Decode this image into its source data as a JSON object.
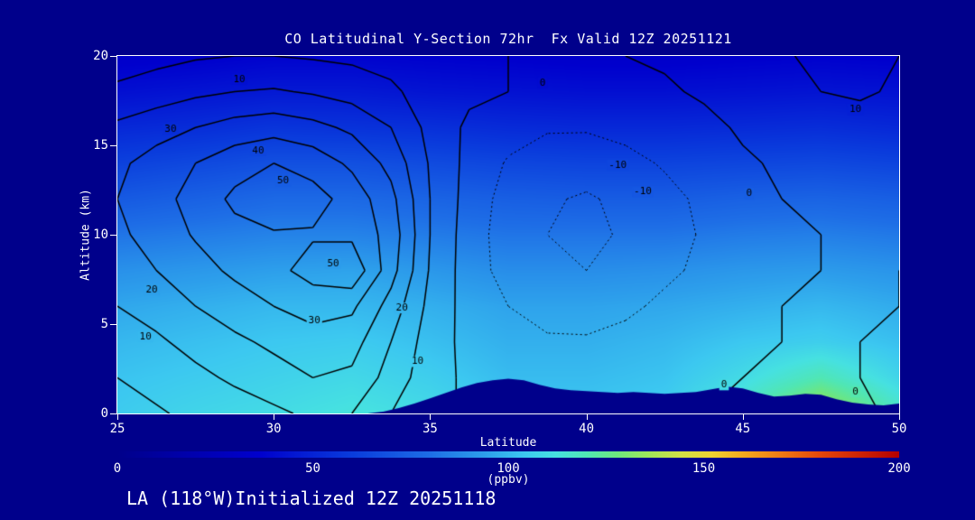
{
  "chart": {
    "title": "CO Latitudinal Y-Section 72hr  Fx Valid 12Z 20251121",
    "xlabel": "Latitude",
    "ylabel": "Altitude (km)",
    "colorbar_label": "(ppbv)",
    "annotation": "LA (118°W)Initialized 12Z 20251118"
  },
  "chart_data": {
    "type": "heatmap",
    "subtype": "latitude-height filled contour cross-section with line contours",
    "title": "CO Latitudinal Y-Section 72hr  Fx Valid 12Z 20251121",
    "xlabel": "Latitude",
    "ylabel": "Altitude (km)",
    "xlim": [
      25,
      50
    ],
    "ylim": [
      0,
      20
    ],
    "x_ticks": [
      25,
      30,
      35,
      40,
      45,
      50
    ],
    "y_ticks": [
      0,
      5,
      10,
      15,
      20
    ],
    "colors": {
      "background": "#00008B",
      "foreground": "#FFFFFF",
      "contour_line": "#000000",
      "terrain": "#00008B"
    },
    "colorbar": {
      "label": "(ppbv)",
      "range": [
        0,
        200
      ],
      "ticks": [
        0,
        50,
        100,
        150,
        200
      ],
      "stops": [
        [
          0.0,
          "#00008B"
        ],
        [
          0.18,
          "#0000CD"
        ],
        [
          0.3,
          "#0A3CDC"
        ],
        [
          0.4,
          "#1E6EE6"
        ],
        [
          0.47,
          "#2D9FEB"
        ],
        [
          0.52,
          "#3CC8F0"
        ],
        [
          0.56,
          "#46E1E1"
        ],
        [
          0.6,
          "#50E6B4"
        ],
        [
          0.64,
          "#6EE67D"
        ],
        [
          0.68,
          "#A0E65A"
        ],
        [
          0.72,
          "#D2E146"
        ],
        [
          0.76,
          "#F0D232"
        ],
        [
          0.8,
          "#F5AA1E"
        ],
        [
          0.85,
          "#F07814"
        ],
        [
          0.9,
          "#E6460A"
        ],
        [
          1.0,
          "#B40000"
        ]
      ]
    },
    "fill_grid": {
      "units": "ppbv",
      "x": [
        25,
        27.5,
        30,
        32.5,
        35,
        37.5,
        40,
        42.5,
        45,
        47.5,
        50
      ],
      "y": [
        0,
        2,
        4,
        6,
        8,
        10,
        12,
        14,
        16,
        18,
        20
      ],
      "values": [
        [
          105,
          108,
          110,
          113,
          110,
          104,
          104,
          106,
          118,
          140,
          118
        ],
        [
          103,
          105,
          107,
          109,
          106,
          101,
          101,
          103,
          110,
          120,
          108
        ],
        [
          100,
          102,
          104,
          105,
          102,
          98,
          98,
          100,
          104,
          106,
          102
        ],
        [
          96,
          98,
          100,
          100,
          98,
          95,
          95,
          96,
          98,
          100,
          97
        ],
        [
          90,
          92,
          94,
          95,
          92,
          89,
          89,
          90,
          92,
          93,
          91
        ],
        [
          82,
          84,
          86,
          86,
          84,
          82,
          82,
          82,
          84,
          85,
          83
        ],
        [
          72,
          75,
          78,
          78,
          76,
          74,
          73,
          73,
          75,
          76,
          74
        ],
        [
          62,
          65,
          68,
          68,
          66,
          64,
          63,
          63,
          64,
          65,
          63
        ],
        [
          52,
          54,
          57,
          56,
          55,
          53,
          52,
          52,
          53,
          54,
          52
        ],
        [
          42,
          44,
          46,
          46,
          44,
          43,
          42,
          42,
          43,
          44,
          43
        ],
        [
          34,
          35,
          37,
          37,
          36,
          35,
          34,
          34,
          35,
          36,
          35
        ]
      ]
    },
    "contour_grid": {
      "interval": 10,
      "negative_style": "dotted",
      "levels": [
        -20,
        -10,
        0,
        10,
        20,
        30,
        40,
        50
      ],
      "x": [
        25,
        26.25,
        27.5,
        28.75,
        30,
        31.25,
        32.5,
        33.75,
        35,
        36.25,
        37.5,
        38.75,
        40,
        41.25,
        42.5,
        43.75,
        45,
        46.25,
        47.5,
        48.75,
        50
      ],
      "y": [
        0,
        2,
        4,
        6,
        8,
        10,
        12,
        14,
        16,
        18,
        20
      ],
      "values": [
        [
          6,
          9,
          12,
          14,
          18,
          22,
          20,
          10,
          2,
          -1,
          -2,
          -2,
          -2,
          -1,
          -1,
          0,
          2,
          3,
          2,
          1,
          -1
        ],
        [
          10,
          13,
          17,
          22,
          26,
          30,
          28,
          16,
          4,
          -2,
          -4,
          -5,
          -5,
          -4,
          -3,
          -1,
          0,
          1,
          1,
          0,
          0
        ],
        [
          14,
          18,
          24,
          28,
          32,
          36,
          34,
          20,
          5,
          -3,
          -7,
          -9,
          -9,
          -7,
          -5,
          -3,
          -1,
          0,
          1,
          0,
          0
        ],
        [
          20,
          25,
          30,
          35,
          40,
          44,
          42,
          26,
          7,
          -4,
          -10,
          -13,
          -14,
          -12,
          -8,
          -5,
          -2,
          0,
          1,
          1,
          0
        ],
        [
          24,
          30,
          36,
          42,
          47,
          54,
          58,
          34,
          9,
          -5,
          -14,
          -18,
          -20,
          -17,
          -12,
          -8,
          -4,
          -1,
          0,
          1,
          0
        ],
        [
          28,
          34,
          41,
          47,
          49,
          49,
          48,
          36,
          10,
          -5,
          -15,
          -20,
          -22,
          -19,
          -14,
          -9,
          -5,
          -1,
          0,
          1,
          1
        ],
        [
          30,
          36,
          44,
          52,
          57,
          54,
          46,
          33,
          10,
          -4,
          -14,
          -19,
          -21,
          -18,
          -13,
          -8,
          -3,
          0,
          1,
          2,
          2
        ],
        [
          28,
          34,
          40,
          46,
          50,
          46,
          38,
          27,
          9,
          -3,
          -11,
          -15,
          -16,
          -13,
          -9,
          -5,
          -1,
          1,
          3,
          4,
          4
        ],
        [
          22,
          26,
          30,
          34,
          36,
          33,
          28,
          20,
          7,
          -2,
          -6,
          -9,
          -9,
          -7,
          -5,
          -2,
          1,
          4,
          6,
          7,
          6
        ],
        [
          12,
          15,
          18,
          20,
          21,
          19,
          16,
          12,
          5,
          2,
          0,
          -3,
          -4,
          -3,
          -1,
          1,
          4,
          8,
          10,
          11,
          9
        ],
        [
          5,
          7,
          9,
          10,
          10,
          9,
          8,
          6,
          3,
          1,
          0,
          -1,
          -1,
          0,
          1,
          2,
          5,
          9,
          12,
          12,
          10
        ]
      ]
    },
    "contour_labels": [
      {
        "value": 10,
        "lat": 28.9,
        "alt": 18.7
      },
      {
        "value": 0,
        "lat": 38.6,
        "alt": 18.5
      },
      {
        "value": 10,
        "lat": 48.6,
        "alt": 17.0
      },
      {
        "value": 30,
        "lat": 26.7,
        "alt": 15.9
      },
      {
        "value": 40,
        "lat": 29.5,
        "alt": 14.7
      },
      {
        "value": 50,
        "lat": 30.3,
        "alt": 13.0
      },
      {
        "value": -10,
        "lat": 41.0,
        "alt": 13.9
      },
      {
        "value": -10,
        "lat": 41.8,
        "alt": 12.4
      },
      {
        "value": 0,
        "lat": 45.2,
        "alt": 12.3
      },
      {
        "value": 50,
        "lat": 31.9,
        "alt": 8.4
      },
      {
        "value": 20,
        "lat": 26.1,
        "alt": 6.9
      },
      {
        "value": 20,
        "lat": 34.1,
        "alt": 5.9
      },
      {
        "value": 30,
        "lat": 31.3,
        "alt": 5.2
      },
      {
        "value": 10,
        "lat": 25.9,
        "alt": 4.3
      },
      {
        "value": 10,
        "lat": 34.6,
        "alt": 2.9
      },
      {
        "value": 0,
        "lat": 44.4,
        "alt": 1.6
      },
      {
        "value": 0,
        "lat": 48.6,
        "alt": 1.2
      }
    ],
    "terrain_profile_km": [
      [
        33,
        0
      ],
      [
        33.5,
        0.1
      ],
      [
        34,
        0.3
      ],
      [
        34.5,
        0.55
      ],
      [
        35,
        0.85
      ],
      [
        35.5,
        1.15
      ],
      [
        36,
        1.45
      ],
      [
        36.5,
        1.7
      ],
      [
        37,
        1.85
      ],
      [
        37.5,
        1.95
      ],
      [
        38,
        1.85
      ],
      [
        38.5,
        1.6
      ],
      [
        39,
        1.4
      ],
      [
        39.5,
        1.3
      ],
      [
        40,
        1.25
      ],
      [
        40.5,
        1.2
      ],
      [
        41,
        1.15
      ],
      [
        41.5,
        1.2
      ],
      [
        42,
        1.15
      ],
      [
        42.5,
        1.1
      ],
      [
        43,
        1.15
      ],
      [
        43.5,
        1.2
      ],
      [
        44,
        1.35
      ],
      [
        44.5,
        1.5
      ],
      [
        45,
        1.4
      ],
      [
        45.5,
        1.15
      ],
      [
        46,
        0.95
      ],
      [
        46.5,
        1.0
      ],
      [
        47,
        1.1
      ],
      [
        47.5,
        1.05
      ],
      [
        48,
        0.8
      ],
      [
        48.5,
        0.6
      ],
      [
        49,
        0.5
      ],
      [
        49.5,
        0.45
      ],
      [
        50,
        0.55
      ]
    ]
  }
}
